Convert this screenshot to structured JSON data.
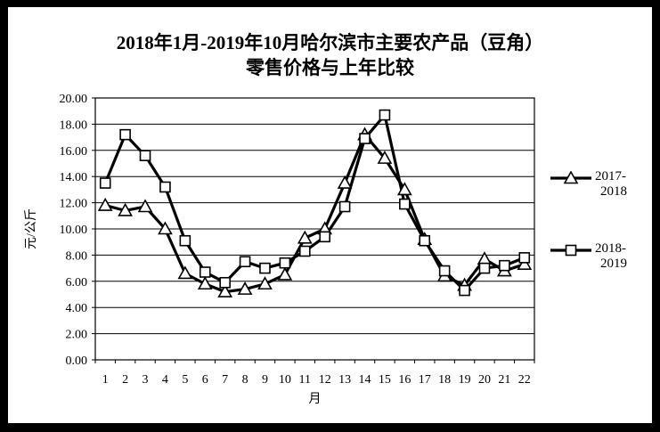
{
  "window": {
    "bg_color": "#000000",
    "panel_color": "#ffffff"
  },
  "title": {
    "line1": "2018年1月-2019年10月哈尔滨市主要农产品（豆角）",
    "line2": "零售价格与上年比较"
  },
  "chart_data": {
    "type": "line",
    "title": "2018年1月-2019年10月哈尔滨市主要农产品（豆角）零售价格与上年比较",
    "categories": [
      1,
      2,
      3,
      4,
      5,
      6,
      7,
      8,
      9,
      10,
      11,
      12,
      13,
      14,
      15,
      16,
      17,
      18,
      19,
      20,
      21,
      22
    ],
    "series": [
      {
        "name": "2017-2018",
        "marker": "triangle",
        "color": "#000000",
        "values": [
          11.8,
          11.4,
          11.7,
          10.0,
          6.6,
          5.8,
          5.2,
          5.4,
          5.8,
          6.5,
          9.3,
          10.0,
          13.5,
          17.2,
          15.4,
          13.0,
          9.2,
          6.4,
          5.7,
          7.7,
          6.8,
          7.3
        ]
      },
      {
        "name": "2018-2019",
        "marker": "square",
        "color": "#000000",
        "values": [
          13.5,
          17.2,
          15.6,
          13.2,
          9.1,
          6.7,
          5.9,
          7.5,
          7.0,
          7.4,
          8.3,
          9.4,
          11.7,
          16.9,
          18.7,
          11.9,
          9.1,
          6.8,
          5.3,
          7.0,
          7.2,
          7.8
        ]
      }
    ],
    "xlabel": "月",
    "ylabel": "元/公斤",
    "ylim": [
      0,
      20
    ],
    "ytick_step": 2,
    "y_tick_labels": [
      "0.00",
      "2.00",
      "4.00",
      "6.00",
      "8.00",
      "10.00",
      "12.00",
      "14.00",
      "16.00",
      "18.00",
      "20.00"
    ],
    "grid": true,
    "legend_position": "right",
    "marker_fill": "#ffffff",
    "line_color": "#000000"
  },
  "legend": {
    "items": [
      {
        "label_line1": "2017-",
        "label_line2": "2018",
        "marker": "triangle"
      },
      {
        "label_line1": "2018-",
        "label_line2": "2019",
        "marker": "square"
      }
    ]
  }
}
